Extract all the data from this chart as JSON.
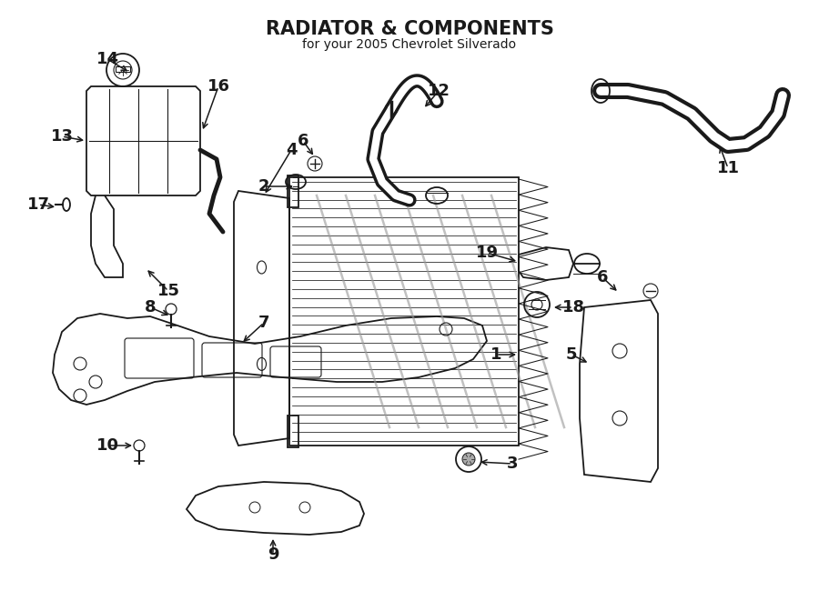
{
  "title": "RADIATOR & COMPONENTS",
  "subtitle": "for your 2005 Chevrolet Silverado",
  "bg": "#ffffff",
  "lc": "#1a1a1a",
  "fig_w": 9.0,
  "fig_h": 6.61,
  "dpi": 100
}
